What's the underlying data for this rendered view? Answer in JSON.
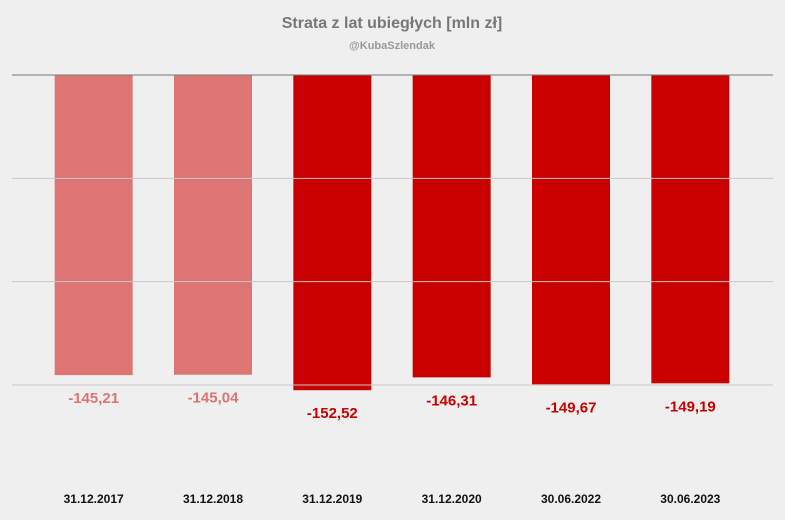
{
  "chart_data": {
    "type": "bar",
    "title": "Strata z lat ubiegłych [mln zł]",
    "subtitle": "@KubaSzlendak",
    "categories": [
      "31.12.2017",
      "31.12.2018",
      "31.12.2019",
      "31.12.2020",
      "30.06.2022",
      "30.06.2023"
    ],
    "values": [
      -145.21,
      -145.04,
      -152.52,
      -146.31,
      -149.67,
      -149.19
    ],
    "value_labels": [
      "-145,21",
      "-145,04",
      "-152,52",
      "-146,31",
      "-149,67",
      "-149,19"
    ],
    "colors": [
      "#dd7575",
      "#dd7575",
      "#c80000",
      "#c80000",
      "#c80000",
      "#c80000"
    ],
    "ylim": [
      -195,
      0
    ],
    "yticks": [
      0,
      -50,
      -100,
      -150
    ],
    "grid": true
  }
}
